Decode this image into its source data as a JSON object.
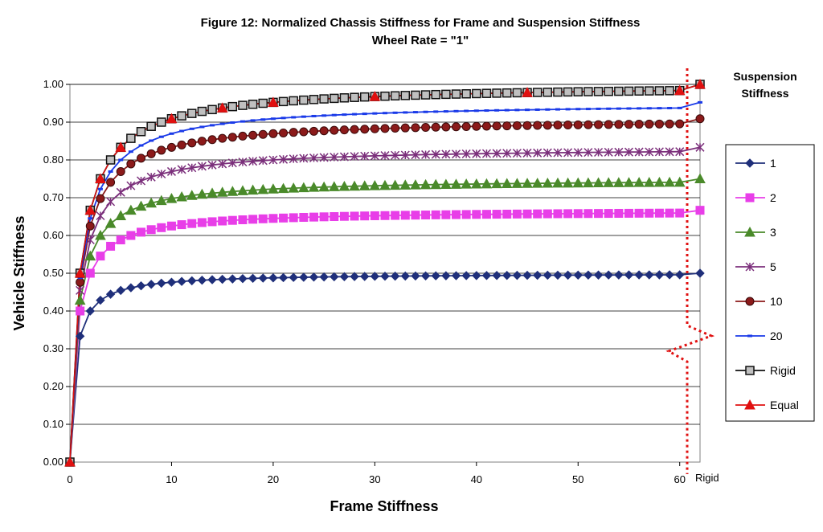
{
  "chart_data": {
    "type": "line",
    "title": "Figure 12: Normalized Chassis Stiffness for Frame  and Suspension Stiffness",
    "subtitle": "Wheel Rate = \"1\"",
    "xlabel": "Frame Stiffness",
    "ylabel": "Vehicle Stiffness",
    "xlim": [
      0,
      62
    ],
    "ylim": [
      0,
      1.0
    ],
    "x_ticks": [
      "0",
      "10",
      "20",
      "30",
      "40",
      "50",
      "60"
    ],
    "y_ticks": [
      "0.00",
      "0.10",
      "0.20",
      "0.30",
      "0.40",
      "0.50",
      "0.60",
      "0.70",
      "0.80",
      "0.90",
      "1.00"
    ],
    "rigid_label": "Rigid",
    "rigid_x": 62,
    "grid": "horizontal",
    "legend": {
      "title_line1": "Suspension",
      "title_line2": "Stiffness",
      "placement": "right"
    },
    "series": [
      {
        "name": "1",
        "suspension": 1,
        "color": "#1f2f7a",
        "marker": "diamond"
      },
      {
        "name": "2",
        "suspension": 2,
        "color": "#e83ee8",
        "marker": "square"
      },
      {
        "name": "3",
        "suspension": 3,
        "color": "#4a8a2a",
        "marker": "triangle"
      },
      {
        "name": "5",
        "suspension": 5,
        "color": "#7b2f7b",
        "marker": "star"
      },
      {
        "name": "10",
        "suspension": 10,
        "color": "#8b1a1a",
        "marker": "circle"
      },
      {
        "name": "20",
        "suspension": 20,
        "color": "#1a3ae8",
        "marker": "dash"
      },
      {
        "name": "Rigid",
        "suspension": null,
        "color": "#111111",
        "marker": "square-open"
      },
      {
        "name": "Equal",
        "suspension": null,
        "color": "#e01010",
        "marker": "triangle"
      }
    ],
    "equal_points_x": [
      0,
      1,
      2,
      3,
      5,
      10,
      15,
      20,
      30,
      45,
      60
    ]
  }
}
